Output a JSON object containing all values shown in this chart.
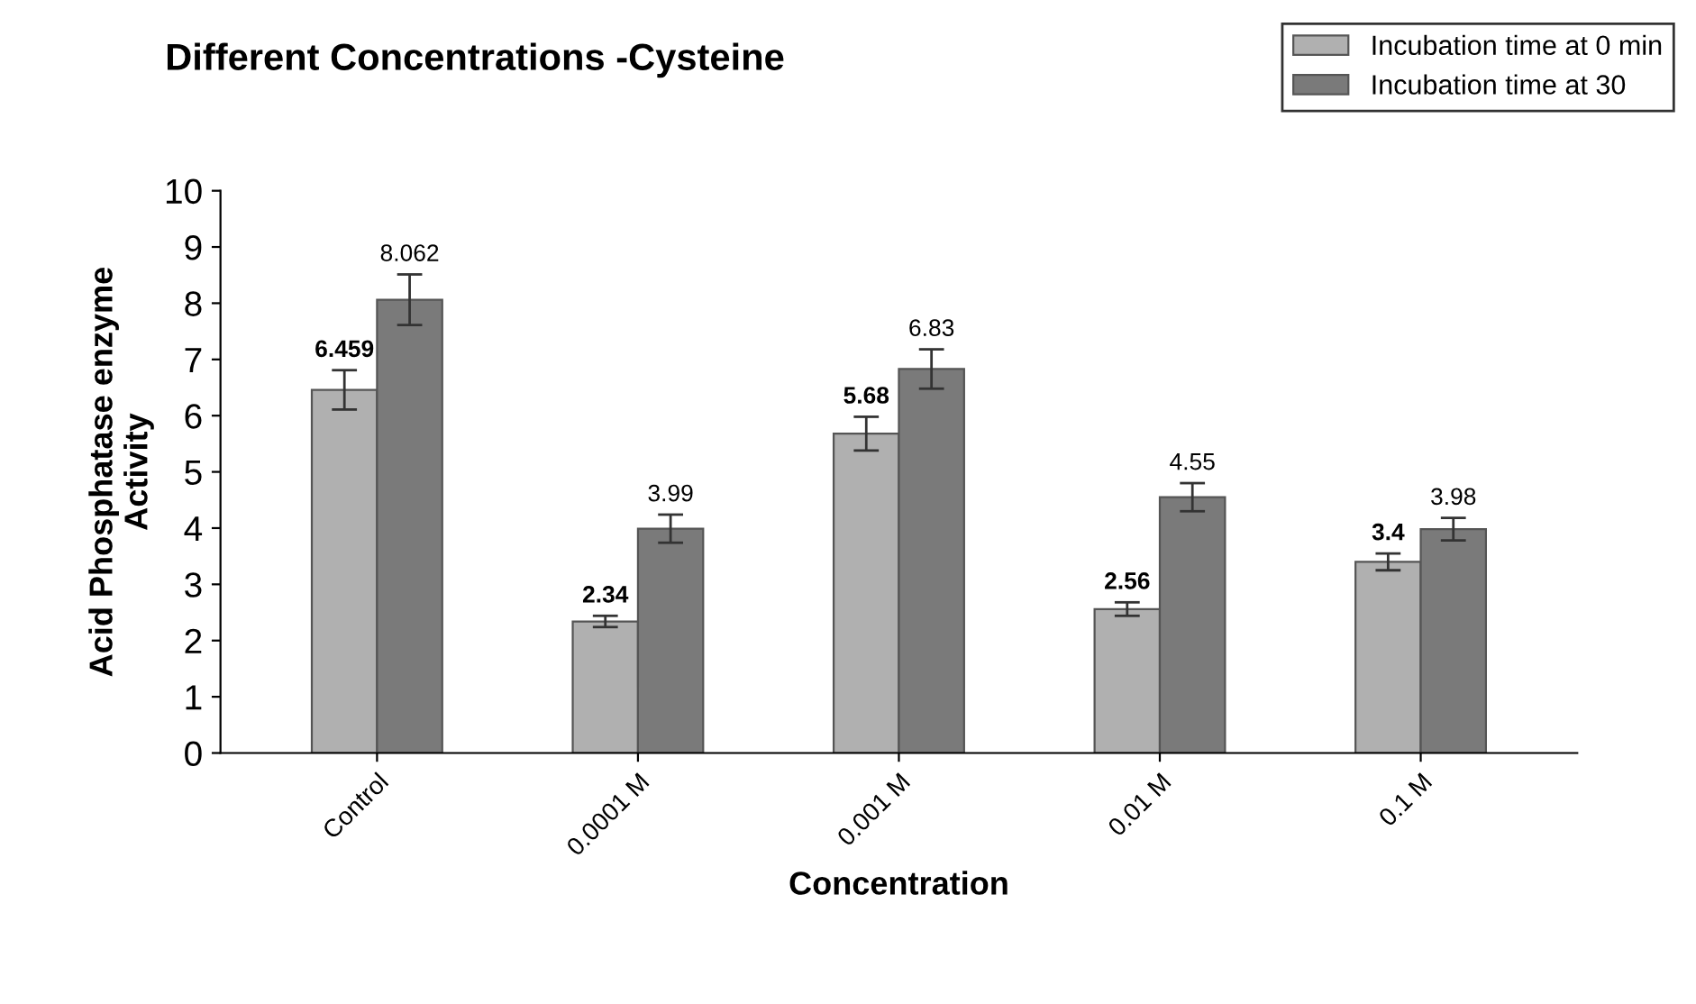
{
  "chart_data": {
    "type": "bar",
    "title": "Different Concentrations -Cysteine",
    "xlabel": "Concentration",
    "ylabel": "Acid Phosphatase enzyme\nActivity",
    "categories": [
      "Control",
      "0.0001 M",
      "0.001 M",
      "0.01 M",
      "0.1 M"
    ],
    "series": [
      {
        "name": "Incubation time at 0 min",
        "color": "#b0b0b0",
        "values": [
          6.459,
          2.34,
          5.68,
          2.56,
          3.4
        ],
        "errors": [
          0.35,
          0.1,
          0.3,
          0.12,
          0.15
        ]
      },
      {
        "name": "Incubation time at 30",
        "color": "#7a7a7a",
        "values": [
          8.062,
          3.99,
          6.83,
          4.55,
          3.98
        ],
        "errors": [
          0.45,
          0.25,
          0.35,
          0.25,
          0.2
        ]
      }
    ],
    "ylim": [
      0,
      10
    ],
    "yticks": [
      0,
      1,
      2,
      3,
      4,
      5,
      6,
      7,
      8,
      9,
      10
    ],
    "data_labels": true,
    "grid": false,
    "legend": "top right"
  }
}
